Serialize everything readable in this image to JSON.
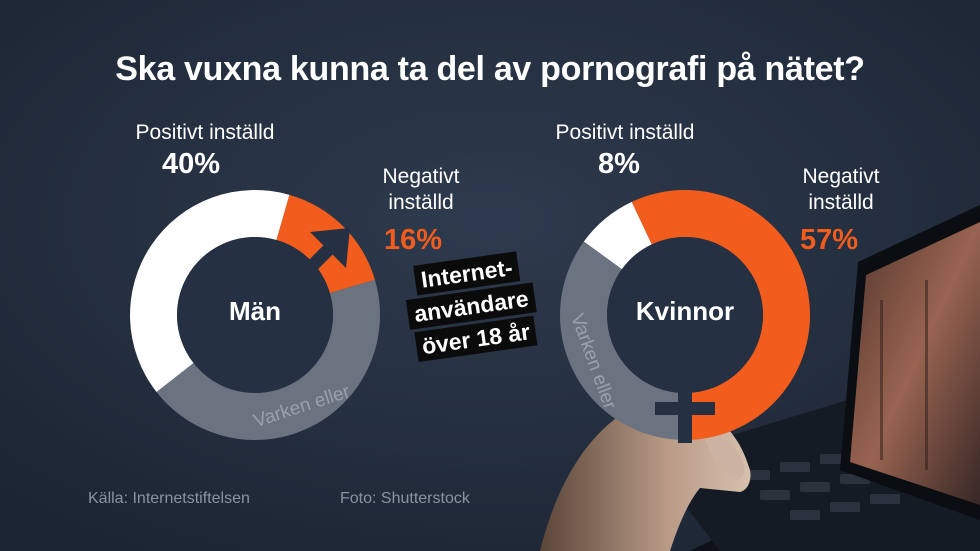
{
  "title": "Ska vuxna kunna ta del av pornografi på nätet?",
  "chart_data": [
    {
      "type": "pie",
      "center_label": "Män",
      "slices": [
        {
          "label": "Positivt inställd",
          "value": 40,
          "display": "40%",
          "color": "#ffffff"
        },
        {
          "label": "Negativt inställd",
          "value": 16,
          "display": "16%",
          "color": "#f25c1d"
        },
        {
          "label": "Varken eller",
          "value": 44,
          "color": "#6b7280"
        }
      ]
    },
    {
      "type": "pie",
      "center_label": "Kvinnor",
      "slices": [
        {
          "label": "Positivt inställd",
          "value": 8,
          "display": "8%",
          "color": "#ffffff"
        },
        {
          "label": "Negativt inställd",
          "value": 57,
          "display": "57%",
          "color": "#f25c1d"
        },
        {
          "label": "Varken eller",
          "value": 35,
          "color": "#6b7280"
        }
      ]
    }
  ],
  "labels": {
    "positive_line": "Positivt inställd",
    "negative_line1": "Negativt",
    "negative_line2": "inställd",
    "neither": "Varken eller"
  },
  "badge": {
    "line1": "Internet-",
    "line2": "användare",
    "line3": "över 18 år"
  },
  "source": "Källa: Internetstiftelsen",
  "photo_credit": "Foto: Shutterstock",
  "colors": {
    "background": "#253142",
    "orange": "#f25c1d",
    "white": "#ffffff",
    "grey": "#6b7280"
  }
}
